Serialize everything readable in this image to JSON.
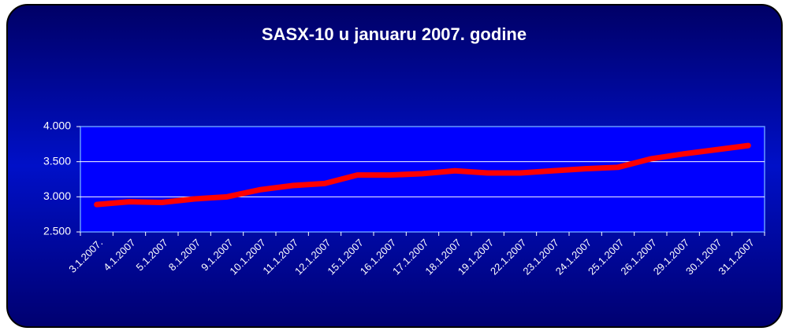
{
  "chart_data": {
    "type": "line",
    "title": "SASX-10 u januaru 2007. godine",
    "categories": [
      "3.1.2007.",
      "4.1.2007",
      "5.1.2007",
      "8.1.2007",
      "9.1.2007",
      "10.1.2007",
      "11.1.2007",
      "12.1.2007",
      "15.1.2007",
      "16.1.2007",
      "17.1.2007",
      "18.1.2007",
      "19.1.2007",
      "22.1.2007",
      "23.1.2007",
      "24.1.2007",
      "25.1.2007",
      "26.1.2007",
      "29.1.2007",
      "30.1.2007",
      "31.1.2007"
    ],
    "values": [
      2890,
      2930,
      2920,
      2970,
      3000,
      3100,
      3160,
      3190,
      3310,
      3310,
      3330,
      3370,
      3340,
      3340,
      3370,
      3400,
      3420,
      3540,
      3610,
      3670,
      3730
    ],
    "color": "#ff0000",
    "ylim": [
      2500,
      4000
    ],
    "yticks": [
      {
        "value": 2500,
        "label": "2.500"
      },
      {
        "value": 3000,
        "label": "3.000"
      },
      {
        "value": 3500,
        "label": "3.500"
      },
      {
        "value": 4000,
        "label": "4.000"
      }
    ],
    "grid": true
  }
}
